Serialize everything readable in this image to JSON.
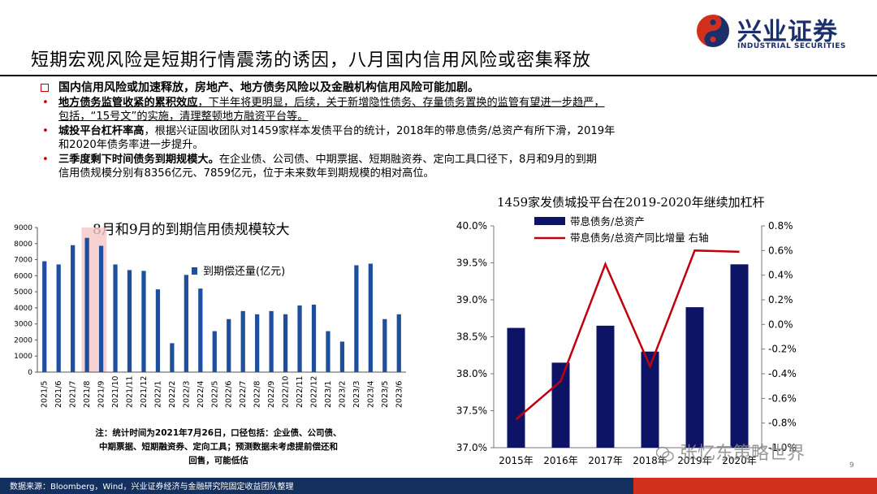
{
  "header": {
    "title": "短期宏观风险是短期行情震荡的诱因，八月国内信用风险或密集释放",
    "logo_cn": "兴业证券",
    "logo_en": "INDUSTRIAL SECURITIES"
  },
  "bullets": {
    "headline": "国内信用风险或加速释放，房地产、地方债务风险以及金融机构信用风险可能加剧。",
    "b1_bold": "地方债务监管收紧的累积效应",
    "b1_a": "，下半年将更明显",
    "b1_b": "，后续，关于新增隐性债务、存量债务置换的监管有望进一步趋严，",
    "b1_c": "包括，“15号文”的实施，清理整顿地方融资平台等。",
    "b2_bold": "城投平台杠杆率高",
    "b2_a": "，根据兴证固收团队对1459家样本发债平台的统计，2018年的带息债务/总资产有所下滑，2019年",
    "b2_b": "和2020年债务率进一步提升。",
    "b3_bold": "三季度剩下时间债务到期规模大。",
    "b3_a": "在企业债、公司债、中期票据、短期融资券、定向工具口径下，8月和9月的到期",
    "b3_b": "信用债规模分别有8356亿元、7859亿元，位于未来数年到期规模的相对高位。"
  },
  "chart_data": [
    {
      "type": "bar",
      "title": "8月和9月的到期信用债规模较大",
      "legend": [
        "到期偿还量(亿元)"
      ],
      "legend_position": "inside-top-right",
      "grid": false,
      "ylim": [
        0,
        9000
      ],
      "yticks": [
        0,
        1000,
        2000,
        3000,
        4000,
        5000,
        6000,
        7000,
        8000,
        9000
      ],
      "highlight": [
        "2021/8",
        "2021/9"
      ],
      "categories": [
        "2021/5",
        "2021/6",
        "2021/7",
        "2021/8",
        "2021/9",
        "2021/10",
        "2021/11",
        "2021/12",
        "2022/1",
        "2022/2",
        "2022/3",
        "2022/4",
        "2022/5",
        "2022/6",
        "2022/7",
        "2022/8",
        "2022/9",
        "2022/10",
        "2022/11",
        "2022/12",
        "2023/1",
        "2023/2",
        "2023/3",
        "2023/4",
        "2023/5",
        "2023/6"
      ],
      "series": [
        {
          "name": "到期偿还量(亿元)",
          "color": "#1f4e9c",
          "values": [
            6900,
            6700,
            7900,
            8356,
            7859,
            6700,
            6350,
            6300,
            5150,
            1800,
            6050,
            5200,
            2550,
            3300,
            3800,
            3600,
            3800,
            3600,
            4150,
            4200,
            2550,
            1900,
            6650,
            6750,
            3300,
            3600
          ]
        }
      ]
    },
    {
      "type": "bar+line",
      "title": "1459家发债城投平台在2019-2020年继续加杠杆",
      "legend_position": "top",
      "grid": false,
      "categories": [
        "2015年",
        "2016年",
        "2017年",
        "2018年",
        "2019年",
        "2020年"
      ],
      "y_left": {
        "lim": [
          37.0,
          40.0
        ],
        "ticks": [
          "37.0%",
          "37.5%",
          "38.0%",
          "38.5%",
          "39.0%",
          "39.5%",
          "40.0%"
        ]
      },
      "y_right": {
        "lim": [
          -1.0,
          0.8
        ],
        "ticks": [
          "-1.0%",
          "-0.8%",
          "-0.6%",
          "-0.4%",
          "-0.2%",
          "0.0%",
          "0.2%",
          "0.4%",
          "0.6%",
          "0.8%"
        ]
      },
      "series": [
        {
          "name": "带息债务/总资产",
          "type": "bar",
          "axis": "left",
          "color": "#0d1466",
          "values": [
            38.62,
            38.15,
            38.65,
            38.3,
            38.9,
            39.48
          ]
        },
        {
          "name": "带息债务/总资产同比增量 右轴",
          "type": "line",
          "axis": "right",
          "color": "#c0000e",
          "values": [
            -0.77,
            -0.46,
            0.49,
            -0.34,
            0.6,
            0.59
          ]
        }
      ]
    }
  ],
  "notes": {
    "line1": "注：统计时间为2021年7月26日，口径包括：企业债、公司债、",
    "line2": "中期票据、短期融资券、定向工具；预测数据未考虑提前偿还和",
    "line3": "回售，可能低估"
  },
  "footer": {
    "source": "数据来源：Bloomberg，Wind，兴业证券经济与金融研究院固定收益团队整理",
    "page": "9",
    "watermark": "张忆东策略世界"
  },
  "colors": {
    "accent_red": "#c00000",
    "brand_blue": "#1b2f6b",
    "footer_blue": "#14305e",
    "footer_red": "#d32f1e"
  }
}
